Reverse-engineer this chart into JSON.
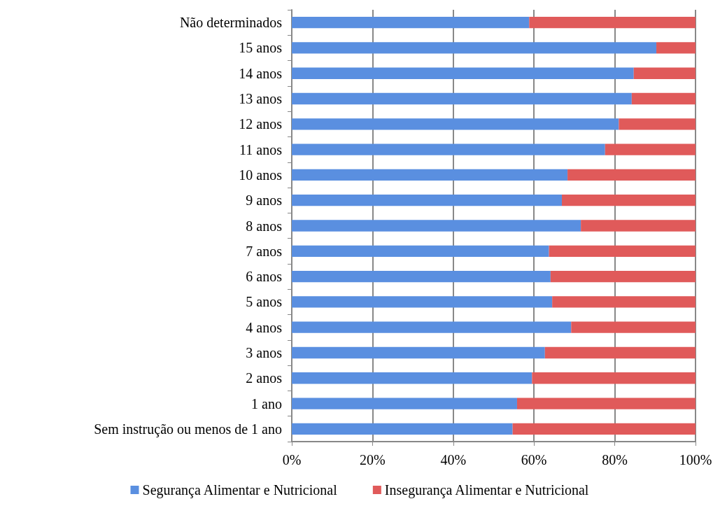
{
  "chart_data": {
    "type": "bar",
    "orientation": "horizontal",
    "stacked": true,
    "categories": [
      "Não determinados",
      "15 anos",
      "14 anos",
      "13 anos",
      "12 anos",
      "11 anos",
      "10 anos",
      "9 anos",
      "8 anos",
      "7 anos",
      "6 anos",
      "5 anos",
      "4 anos",
      "3 anos",
      "2 anos",
      "1 ano",
      "Sem instrução ou menos de 1 ano"
    ],
    "series": [
      {
        "name": "Segurança Alimentar e Nutricional",
        "color": "#5a8fe0",
        "values": [
          58.8,
          90.3,
          84.7,
          84.2,
          81.0,
          77.6,
          68.3,
          66.9,
          71.6,
          63.7,
          64.1,
          64.5,
          69.2,
          62.7,
          59.5,
          55.8,
          54.7
        ]
      },
      {
        "name": "Insegurança Alimentar e Nutricional",
        "color": "#e05a5a",
        "values": [
          41.2,
          9.7,
          15.3,
          15.8,
          19.0,
          22.4,
          31.7,
          33.1,
          28.4,
          36.3,
          35.9,
          35.5,
          30.8,
          37.3,
          40.5,
          44.2,
          45.3
        ]
      }
    ],
    "xlim": [
      0,
      100
    ],
    "xticks": [
      {
        "value": 0,
        "label": "0%"
      },
      {
        "value": 20,
        "label": "20%"
      },
      {
        "value": 40,
        "label": "40%"
      },
      {
        "value": 60,
        "label": "60%"
      },
      {
        "value": 80,
        "label": "80%"
      },
      {
        "value": 100,
        "label": "100%"
      }
    ],
    "grid": "x",
    "legend": "bottom"
  }
}
